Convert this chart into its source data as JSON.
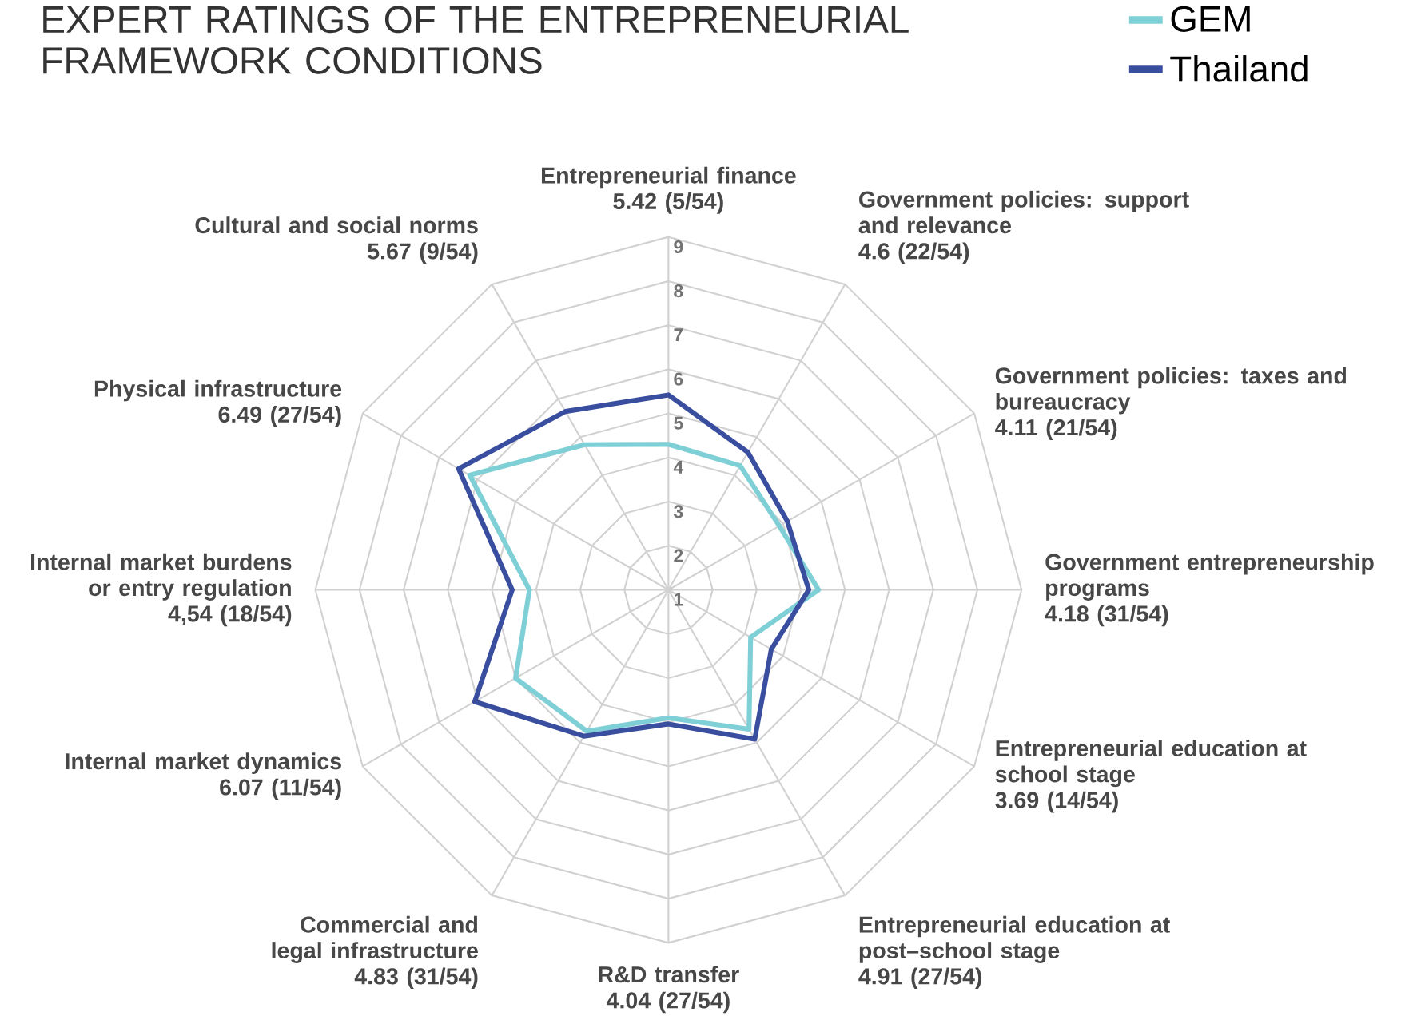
{
  "chart_data": {
    "type": "radar",
    "title": "EXPERT RATINGS OF THE ENTREPRENEURIAL FRAMEWORK CONDITIONS",
    "categories": [
      "Entrepreneurial finance",
      "Government policies: support and relevance",
      "Government policies: taxes and bureaucracy",
      "Government entrepreneurship programs",
      "Entrepreneurial education at school stage",
      "Entrepreneurial education at post–school stage",
      "R&D transfer",
      "Commercial and legal infrastructure",
      "Internal market dynamics",
      "Internal market burdens or entry regulation",
      "Physical infrastructure",
      "Cultural and social norms"
    ],
    "series": [
      {
        "name": "GEM",
        "color": "#7fcfd6",
        "values": [
          4.3,
          4.25,
          3.9,
          4.4,
          3.15,
          4.65,
          3.9,
          4.7,
          5.0,
          4.15,
          6.2,
          4.8
        ]
      },
      {
        "name": "Thailand",
        "color": "#3a4ea0",
        "values": [
          5.42,
          4.6,
          4.11,
          4.18,
          3.69,
          4.91,
          4.04,
          4.83,
          6.07,
          4.54,
          6.49,
          5.67
        ]
      }
    ],
    "annotations": [
      "5.42 (5/54)",
      "4.6 (22/54)",
      "4.11 (21/54)",
      "4.18 (31/54)",
      "3.69 (14/54)",
      "4.91 (27/54)",
      "4.04 (27/54)",
      "4.83 (31/54)",
      "6.07 (11/54)",
      "4,54 (18/54)",
      "6.49 (27/54)",
      "5.67 (9/54)"
    ],
    "ylim": [
      1,
      9
    ],
    "yticks": [
      1,
      2,
      3,
      4,
      5,
      6,
      7,
      8,
      9
    ],
    "grid": true,
    "legend": "top right"
  }
}
